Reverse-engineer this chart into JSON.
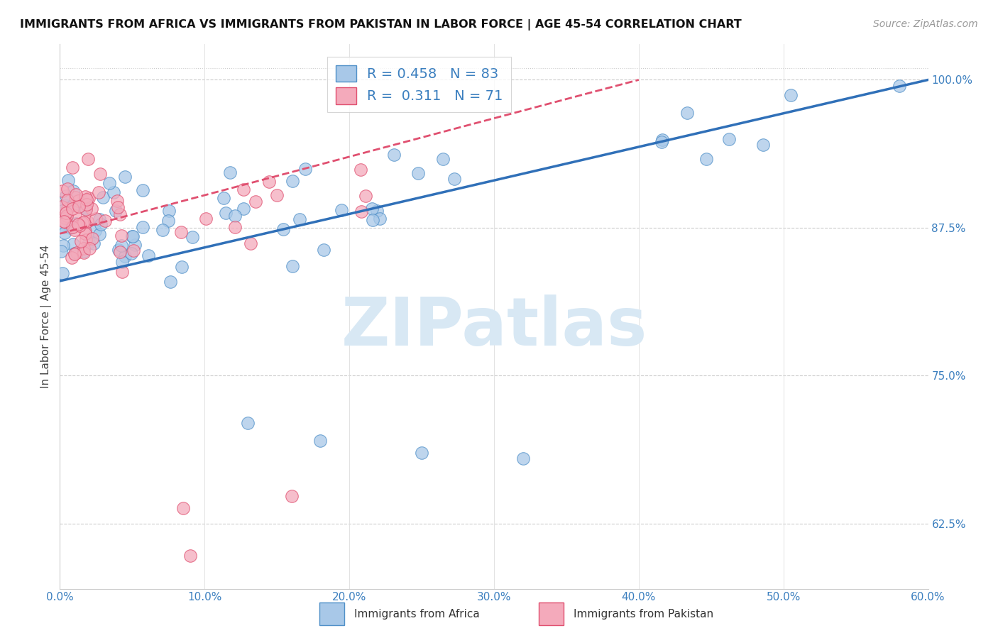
{
  "title": "IMMIGRANTS FROM AFRICA VS IMMIGRANTS FROM PAKISTAN IN LABOR FORCE | AGE 45-54 CORRELATION CHART",
  "source": "Source: ZipAtlas.com",
  "ylabel": "In Labor Force | Age 45-54",
  "xlim": [
    0.0,
    0.6
  ],
  "ylim": [
    0.57,
    1.03
  ],
  "ytick_vals_right": [
    0.625,
    0.75,
    0.875,
    1.0
  ],
  "ytick_labels_right": [
    "62.5%",
    "75.0%",
    "87.5%",
    "100.0%"
  ],
  "africa_R": 0.458,
  "africa_N": 83,
  "pakistan_R": 0.311,
  "pakistan_N": 71,
  "africa_color": "#A8C8E8",
  "pakistan_color": "#F4AABB",
  "africa_edge_color": "#5090C8",
  "pakistan_edge_color": "#E05070",
  "africa_line_color": "#3070B8",
  "pakistan_line_color": "#E05070",
  "watermark": "ZIPatlas",
  "watermark_color": "#D8E8F4",
  "legend_label_africa": "Immigrants from Africa",
  "legend_label_pakistan": "Immigrants from Pakistan",
  "africa_trend_x0": 0.0,
  "africa_trend_y0": 0.83,
  "africa_trend_x1": 0.6,
  "africa_trend_y1": 1.0,
  "pakistan_trend_x0": 0.0,
  "pakistan_trend_y0": 0.87,
  "pakistan_trend_x1": 0.4,
  "pakistan_trend_y1": 1.0
}
